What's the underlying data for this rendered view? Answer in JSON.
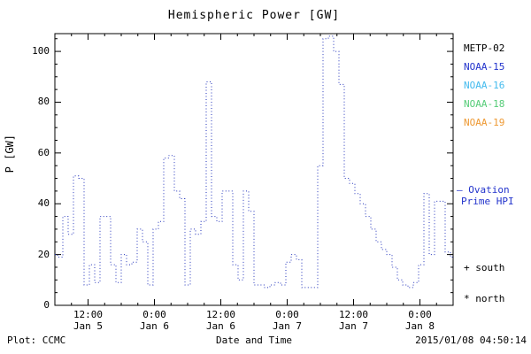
{
  "title": "Hemispheric Power [GW]",
  "ylabel": "P [GW]",
  "xlabel": "Date and Time",
  "footer": {
    "left": "Plot: CCMC",
    "right": "2015/01/08 04:50:14"
  },
  "legend": {
    "satellites": [
      {
        "label": "METP-02",
        "color": "#000000"
      },
      {
        "label": "NOAA-15",
        "color": "#2233cc"
      },
      {
        "label": "NOAA-16",
        "color": "#44bbee"
      },
      {
        "label": "NOAA-18",
        "color": "#55cc77"
      },
      {
        "label": "NOAA-19",
        "color": "#ee9933"
      }
    ],
    "model": {
      "line1": "— Ovation",
      "line2": "Prime HPI",
      "color": "#2233cc"
    },
    "markers": {
      "south": "+ south",
      "north": "* north"
    }
  },
  "chart_data": {
    "type": "line",
    "style": "step-dotted",
    "title": "Hemispheric Power [GW]",
    "xlabel": "Date and Time",
    "ylabel": "P [GW]",
    "line_color": "#2233bb",
    "ylim": [
      0,
      107
    ],
    "yticks": [
      0,
      20,
      40,
      60,
      80,
      100
    ],
    "x_range": [
      "2015-01-05 06:00",
      "2015-01-08 06:00"
    ],
    "total_hours": 72,
    "x_tick_hours": [
      6,
      18,
      30,
      42,
      54,
      66
    ],
    "x_ticks": [
      {
        "time": "12:00",
        "date": "Jan 5"
      },
      {
        "time": "0:00",
        "date": "Jan 6"
      },
      {
        "time": "12:00",
        "date": "Jan 6"
      },
      {
        "time": "0:00",
        "date": "Jan 7"
      },
      {
        "time": "12:00",
        "date": "Jan 7"
      },
      {
        "time": "0:00",
        "date": "Jan 8"
      }
    ],
    "series_name": "Ovation Prime HPI",
    "values_gw": [
      20,
      19,
      35,
      28,
      51,
      50,
      8,
      16,
      9,
      35,
      35,
      16,
      9,
      20,
      16,
      17,
      30,
      25,
      8,
      30,
      33,
      58,
      59,
      45,
      42,
      8,
      30,
      28,
      33,
      88,
      35,
      33,
      45,
      45,
      16,
      10,
      45,
      37,
      8,
      8,
      7,
      8,
      9,
      8,
      17,
      20,
      18,
      7,
      7,
      7,
      55,
      105,
      106,
      100,
      87,
      50,
      48,
      44,
      40,
      35,
      30,
      25,
      22,
      20,
      15,
      10,
      8,
      7,
      9,
      16,
      44,
      20,
      41,
      41,
      21,
      19
    ]
  }
}
